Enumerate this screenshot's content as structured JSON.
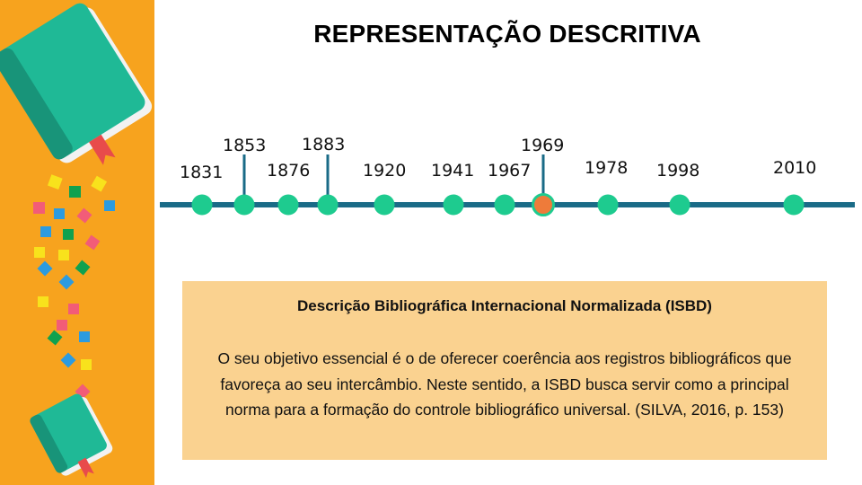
{
  "title": "REPRESENTAÇÃO DESCRITIVA",
  "timeline": {
    "line_color": "#1a6b87",
    "dot_color": "#1ecb8f",
    "highlight_color": "#ee7b3a",
    "events": [
      {
        "year": "1831",
        "highlight": false
      },
      {
        "year": "1853",
        "highlight": false
      },
      {
        "year": "1876",
        "highlight": false
      },
      {
        "year": "1883",
        "highlight": false
      },
      {
        "year": "1920",
        "highlight": false
      },
      {
        "year": "1941",
        "highlight": false
      },
      {
        "year": "1967",
        "highlight": false
      },
      {
        "year": "1969",
        "highlight": true
      },
      {
        "year": "1978",
        "highlight": false
      },
      {
        "year": "1998",
        "highlight": false
      },
      {
        "year": "2010",
        "highlight": false
      }
    ]
  },
  "infobox": {
    "heading": "Descrição Bibliográfica Internacional Normalizada (ISBD)",
    "body": "O seu objetivo essencial é o de oferecer coerência aos registros bibliográficos que favoreça ao seu intercâmbio. Neste sentido, a ISBD busca servir como a principal norma para a formação do controle bibliográfico universal. (SILVA, 2016, p. 153)"
  },
  "sidebar": {
    "background": "#f7a31e",
    "book_color": "#1fb996",
    "book_spine_color": "#189479",
    "bookmark_color": "#e84b4b",
    "icons": [
      "book-icon",
      "book-icon"
    ]
  }
}
